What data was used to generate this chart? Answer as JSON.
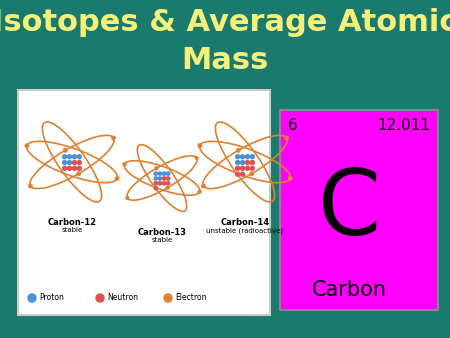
{
  "background_color": "#1a7a6e",
  "title_line1": "Isotopes & Average Atomic",
  "title_line2": "Mass",
  "title_color": "#f5f07a",
  "title_fontsize": 22,
  "element_symbol": "C",
  "element_name": "Carbon",
  "atomic_number": "6",
  "atomic_mass": "12.011",
  "element_box_color": "#ff00ff",
  "element_box_edge_color": "#888888",
  "element_text_color": "#000000",
  "isotope_box_color": "#ffffff",
  "isotope_box_edge_color": "#cccccc",
  "carbon12_label": "Carbon-12",
  "carbon12_sub": "stable",
  "carbon13_label": "Carbon-13",
  "carbon13_sub": "stable",
  "carbon14_label": "Carbon-14",
  "carbon14_sub": "unstable (radioactive)",
  "legend_proton_color": "#4a90d9",
  "legend_neutron_color": "#e05050",
  "legend_electron_color": "#e08030",
  "orbit_color": "#e08030",
  "nucleus_proton_color": "#4a90d9",
  "nucleus_neutron_color": "#e05050"
}
